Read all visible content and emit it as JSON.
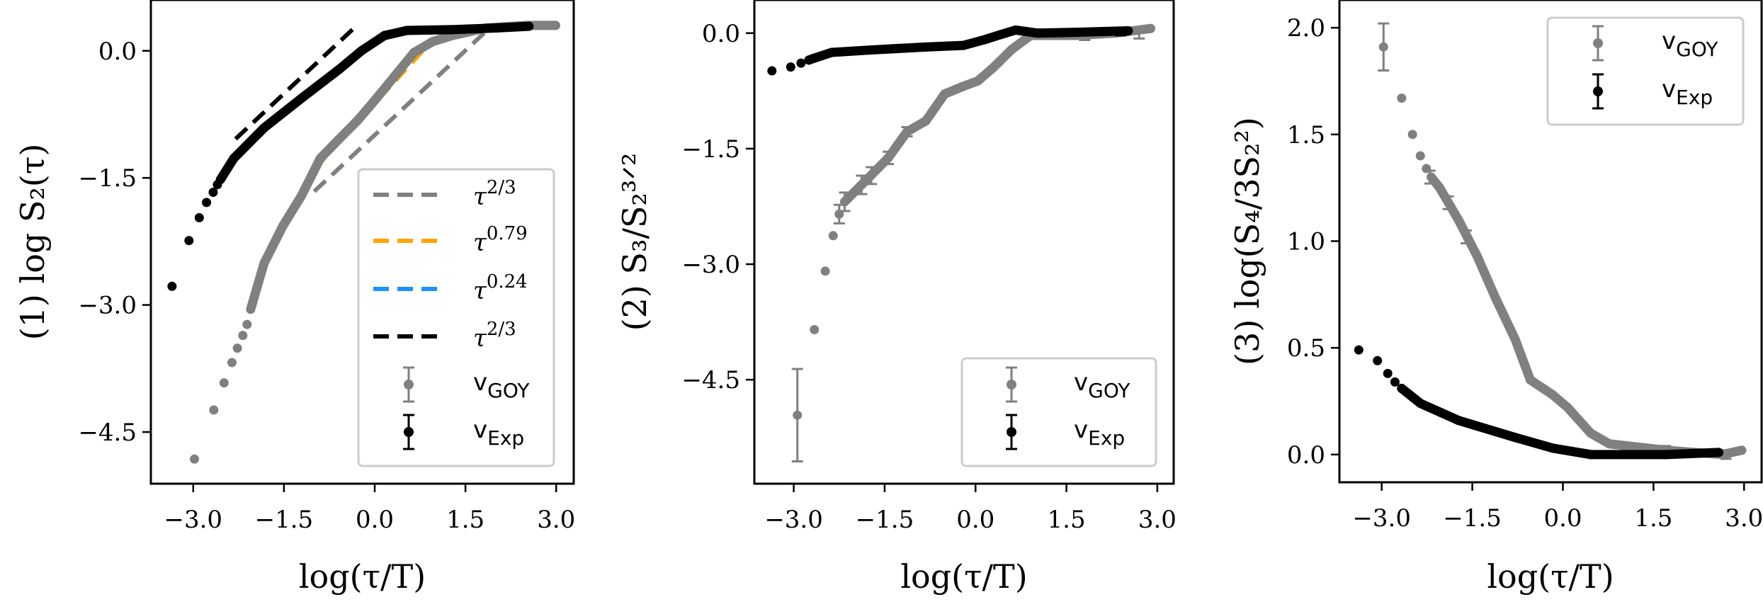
{
  "colors": {
    "goy": "#808080",
    "exp": "#000000",
    "fit_gray": "#808080",
    "fit_orange": "#FFA500",
    "fit_blue": "#1E90FF",
    "fit_black": "#000000",
    "legend_border": "#cccccc"
  },
  "chart_data": [
    {
      "type": "scatter",
      "xlabel": "log(τ/T)",
      "ylabel": "(1) log S₂(τ)",
      "xlim": [
        -3.7,
        3.29
      ],
      "ylim": [
        -5.11,
        0.6
      ],
      "xticks": [
        -3.0,
        -1.5,
        0.0,
        1.5,
        3.0
      ],
      "xtick_labels": [
        "−3.0",
        "−1.5",
        "0.0",
        "1.5",
        "3.0"
      ],
      "yticks": [
        0.0,
        -1.5,
        -3.0,
        -4.5
      ],
      "ytick_labels": [
        "0.0",
        "−1.5",
        "−3.0",
        "−4.5"
      ],
      "grid": false,
      "legend_position": "lower-right",
      "fits": [
        {
          "name_base": "τ",
          "name_exp": "2/3",
          "color": "#808080",
          "x": [
            -1.0,
            1.9
          ],
          "y": [
            -1.66,
            0.27
          ]
        },
        {
          "name_base": "τ",
          "name_exp": "0.79",
          "color": "#FFA500",
          "x": [
            -1.0,
            0.96
          ],
          "y": [
            -1.4,
            0.13
          ]
        },
        {
          "name_base": "τ",
          "name_exp": "0.24",
          "color": "#1E90FF",
          "x": [
            0.96,
            1.86
          ],
          "y": [
            0.09,
            0.29
          ]
        },
        {
          "name_base": "τ",
          "name_exp": "2/3",
          "color": "#000000",
          "x": [
            -2.3,
            -0.31
          ],
          "y": [
            -1.04,
            0.29
          ]
        }
      ],
      "series": [
        {
          "name_main": "v",
          "name_sub": "GOY",
          "color": "#808080",
          "points": [
            [
              -2.98,
              -4.82
            ],
            [
              -2.66,
              -4.24
            ],
            [
              -2.49,
              -3.92
            ],
            [
              -2.36,
              -3.68
            ],
            [
              -2.27,
              -3.51
            ],
            [
              -2.18,
              -3.36
            ],
            [
              -2.11,
              -3.23
            ]
          ],
          "curve": [
            [
              -2.05,
              -3.05
            ],
            [
              -1.83,
              -2.51
            ],
            [
              -1.52,
              -2.07
            ],
            [
              -1.21,
              -1.71
            ],
            [
              -0.9,
              -1.27
            ],
            [
              -0.6,
              -1.05
            ],
            [
              -0.28,
              -0.82
            ],
            [
              0.03,
              -0.56
            ],
            [
              0.34,
              -0.29
            ],
            [
              0.65,
              -0.02
            ],
            [
              0.96,
              0.11
            ],
            [
              1.28,
              0.18
            ],
            [
              1.84,
              0.27
            ],
            [
              2.52,
              0.3
            ],
            [
              2.99,
              0.3
            ]
          ],
          "errorbars": []
        },
        {
          "name_main": "v",
          "name_sub": "Exp",
          "color": "#000000",
          "points": [
            [
              -3.35,
              -2.78
            ],
            [
              -3.07,
              -2.24
            ],
            [
              -2.9,
              -1.97
            ],
            [
              -2.78,
              -1.79
            ],
            [
              -2.67,
              -1.67
            ],
            [
              -2.6,
              -1.58
            ]
          ],
          "curve": [
            [
              -2.55,
              -1.52
            ],
            [
              -2.33,
              -1.27
            ],
            [
              -1.83,
              -0.91
            ],
            [
              -1.21,
              -0.56
            ],
            [
              -0.59,
              -0.22
            ],
            [
              -0.22,
              0.0
            ],
            [
              0.16,
              0.18
            ],
            [
              0.53,
              0.24
            ],
            [
              1.28,
              0.25
            ],
            [
              2.0,
              0.27
            ],
            [
              2.55,
              0.29
            ]
          ],
          "errorbars": []
        }
      ]
    },
    {
      "type": "scatter",
      "xlabel": "log(τ/T)",
      "ylabel": "(2) S₃/S₂³ᐟ²",
      "xlim": [
        -3.65,
        3.27
      ],
      "ylim": [
        -5.85,
        0.43
      ],
      "xticks": [
        -3.0,
        -1.5,
        0.0,
        1.5,
        3.0
      ],
      "xtick_labels": [
        "−3.0",
        "−1.5",
        "0.0",
        "1.5",
        "3.0"
      ],
      "yticks": [
        0.0,
        -1.5,
        -3.0,
        -4.5
      ],
      "ytick_labels": [
        "0.0",
        "−1.5",
        "−3.0",
        "−4.5"
      ],
      "grid": false,
      "legend_position": "lower-right",
      "fits": [],
      "series": [
        {
          "name_main": "v",
          "name_sub": "GOY",
          "color": "#808080",
          "points": [
            [
              -2.94,
              -4.96
            ],
            [
              -2.66,
              -3.85
            ],
            [
              -2.48,
              -3.09
            ],
            [
              -2.35,
              -2.63
            ],
            [
              -2.25,
              -2.35
            ]
          ],
          "curve": [
            [
              -2.16,
              -2.19
            ],
            [
              -1.88,
              -1.97
            ],
            [
              -1.44,
              -1.62
            ],
            [
              -1.13,
              -1.28
            ],
            [
              -0.82,
              -1.14
            ],
            [
              -0.51,
              -0.79
            ],
            [
              -0.2,
              -0.69
            ],
            [
              0.04,
              -0.62
            ],
            [
              0.29,
              -0.45
            ],
            [
              0.6,
              -0.21
            ],
            [
              0.91,
              -0.03
            ],
            [
              1.65,
              -0.03
            ],
            [
              2.3,
              0.0
            ],
            [
              2.89,
              0.06
            ]
          ],
          "errorbars": [
            [
              -2.94,
              -4.96,
              0.6
            ],
            [
              -2.25,
              -2.35,
              0.12
            ],
            [
              -2.16,
              -2.19,
              0.12
            ],
            [
              -1.88,
              -1.97,
              0.12
            ],
            [
              -1.72,
              -1.85,
              0.11
            ],
            [
              -1.44,
              -1.62,
              0.08
            ],
            [
              -1.13,
              -1.28,
              0.06
            ],
            [
              1.8,
              -0.03,
              0.06
            ],
            [
              2.7,
              0.0,
              0.07
            ]
          ]
        },
        {
          "name_main": "v",
          "name_sub": "Exp",
          "color": "#000000",
          "points": [
            [
              -3.36,
              -0.49
            ],
            [
              -3.05,
              -0.44
            ],
            [
              -2.88,
              -0.39
            ]
          ],
          "curve": [
            [
              -2.75,
              -0.35
            ],
            [
              -2.68,
              -0.33
            ],
            [
              -2.37,
              -0.25
            ],
            [
              -1.75,
              -0.22
            ],
            [
              -0.82,
              -0.18
            ],
            [
              -0.2,
              -0.16
            ],
            [
              0.17,
              -0.08
            ],
            [
              0.41,
              -0.02
            ],
            [
              0.66,
              0.04
            ],
            [
              1.03,
              0.0
            ],
            [
              1.65,
              0.01
            ],
            [
              2.52,
              0.03
            ]
          ],
          "errorbars": [
            [
              2.4,
              0.02,
              0.05
            ]
          ]
        }
      ]
    },
    {
      "type": "scatter",
      "xlabel": "log(τ/T)",
      "ylabel": "(3) log(S₄/3S₂²)",
      "xlim": [
        -3.7,
        3.29
      ],
      "ylim": [
        -0.13,
        2.13
      ],
      "xticks": [
        -3.0,
        -1.5,
        0.0,
        1.5,
        3.0
      ],
      "xtick_labels": [
        "−3.0",
        "−1.5",
        "0.0",
        "1.5",
        "3.0"
      ],
      "yticks": [
        0.0,
        0.5,
        1.0,
        1.5,
        2.0
      ],
      "ytick_labels": [
        "0.0",
        "0.5",
        "1.0",
        "1.5",
        "2.0"
      ],
      "grid": false,
      "legend_position": "upper-right",
      "fits": [],
      "series": [
        {
          "name_main": "v",
          "name_sub": "GOY",
          "color": "#808080",
          "points": [
            [
              -2.97,
              1.91
            ],
            [
              -2.67,
              1.67
            ],
            [
              -2.49,
              1.5
            ],
            [
              -2.36,
              1.4
            ],
            [
              -2.26,
              1.34
            ]
          ],
          "curve": [
            [
              -2.18,
              1.3
            ],
            [
              -2.04,
              1.25
            ],
            [
              -1.73,
              1.1
            ],
            [
              -1.42,
              0.93
            ],
            [
              -1.11,
              0.73
            ],
            [
              -0.79,
              0.54
            ],
            [
              -0.54,
              0.35
            ],
            [
              -0.17,
              0.28
            ],
            [
              0.08,
              0.22
            ],
            [
              0.46,
              0.1
            ],
            [
              0.77,
              0.05
            ],
            [
              1.71,
              0.02
            ],
            [
              2.64,
              0.0
            ],
            [
              2.96,
              0.02
            ]
          ],
          "errorbars": [
            [
              -2.97,
              1.91,
              0.11
            ],
            [
              -2.2,
              1.3,
              0.03
            ],
            [
              -1.9,
              1.18,
              0.03
            ],
            [
              -1.6,
              1.02,
              0.03
            ],
            [
              1.7,
              0.02,
              0.02
            ],
            [
              2.7,
              0.0,
              0.02
            ]
          ]
        },
        {
          "name_main": "v",
          "name_sub": "Exp",
          "color": "#000000",
          "points": [
            [
              -3.38,
              0.49
            ],
            [
              -3.07,
              0.44
            ],
            [
              -2.9,
              0.38
            ],
            [
              -2.78,
              0.34
            ]
          ],
          "curve": [
            [
              -2.67,
              0.31
            ],
            [
              -2.36,
              0.24
            ],
            [
              -1.73,
              0.16
            ],
            [
              -0.79,
              0.08
            ],
            [
              -0.17,
              0.03
            ],
            [
              0.46,
              0.0
            ],
            [
              1.71,
              0.0
            ],
            [
              2.58,
              0.01
            ]
          ],
          "errorbars": []
        }
      ]
    }
  ]
}
